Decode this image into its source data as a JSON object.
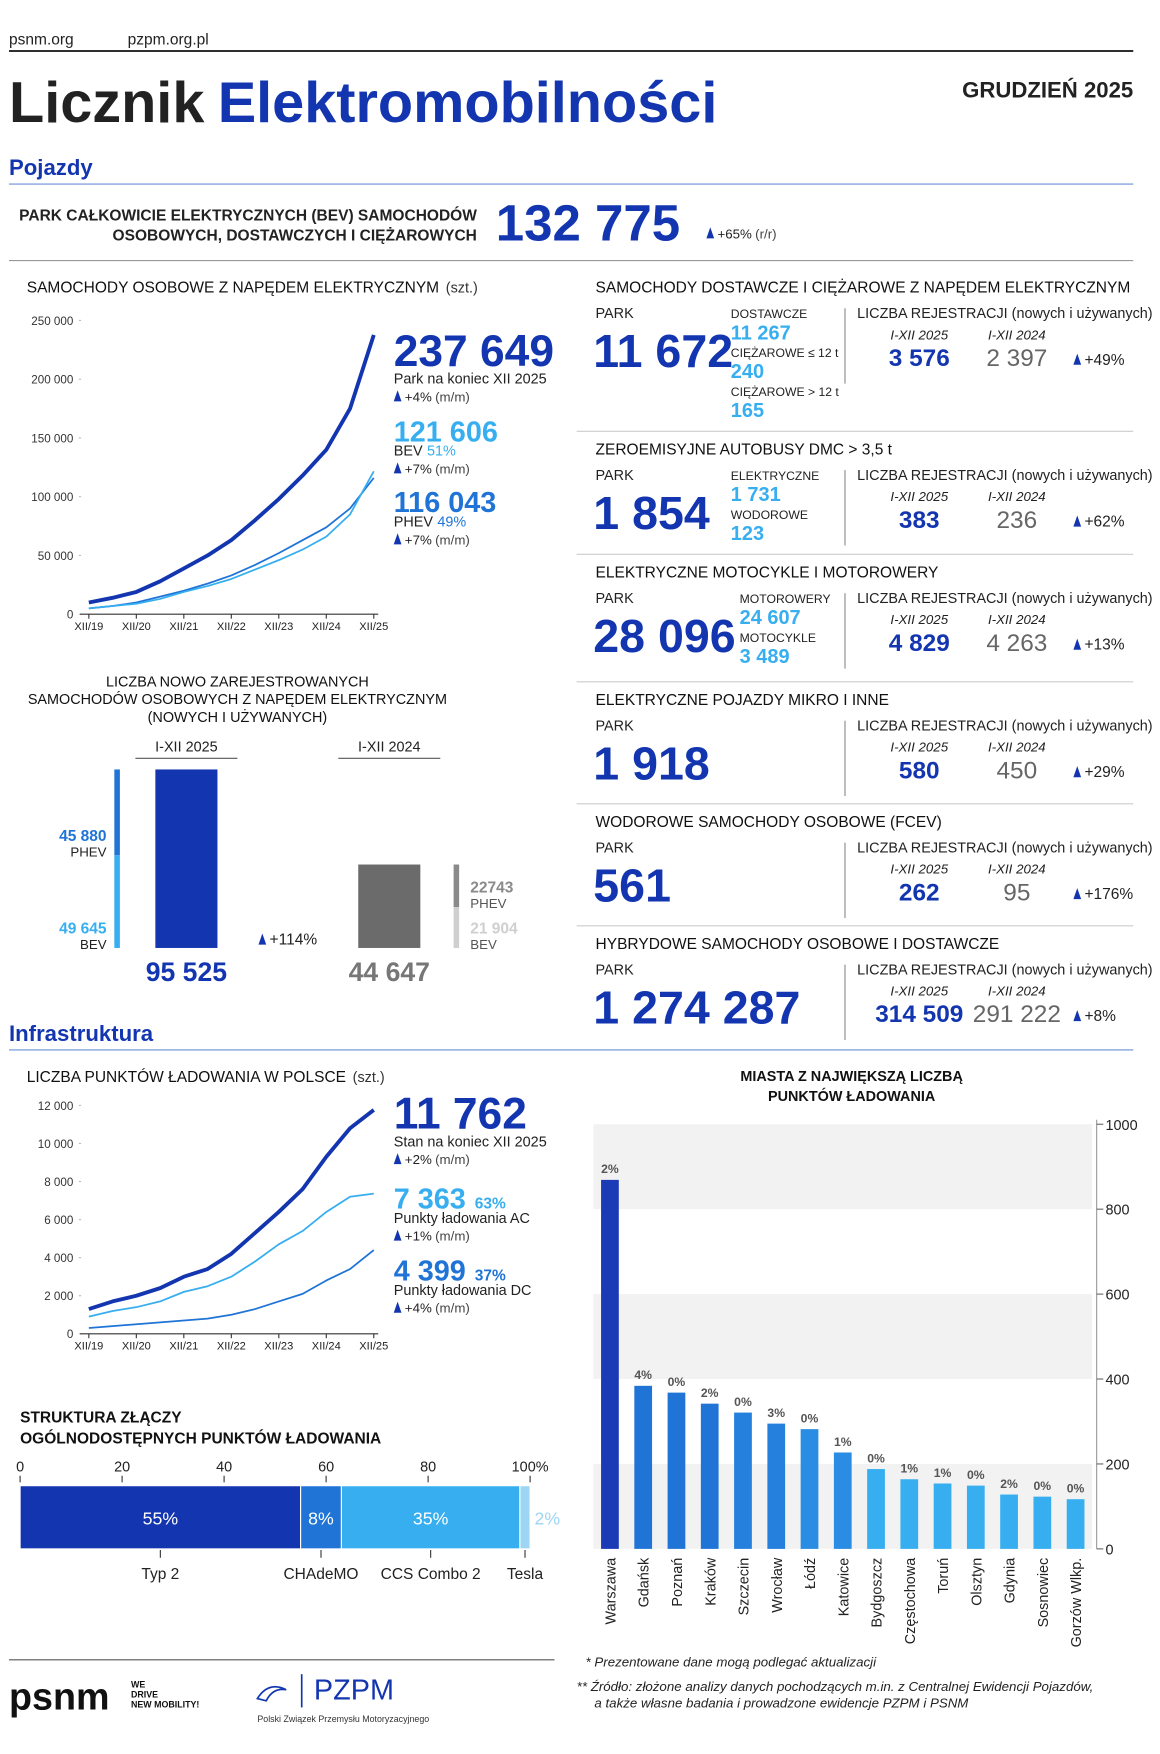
{
  "header": {
    "links": [
      "psnm.org",
      "pzpm.org.pl"
    ],
    "title_1": "Licznik",
    "title_2": "Elektromobilności",
    "date": "GRUDZIEŃ 2025"
  },
  "sections": [
    "Pojazdy",
    "Infrastruktura"
  ],
  "bev_park": {
    "label": [
      "PARK CAŁKOWICIE ELEKTRYCZNYCH (BEV) SAMOCHODÓW",
      "OSOBOWYCH, DOSTAWCZYCH I CIĘŻAROWYCH"
    ],
    "value": "132 775",
    "change": "+65%",
    "change_unit": "(r/r)"
  },
  "panels": [
    {
      "title": "SAMOCHODY DOSTAWCZE I CIĘŻAROWE Z NAPĘDEM ELEKTRYCZNYM",
      "park_label": "PARK",
      "park": "11 672",
      "breakdown": [
        {
          "label": "DOSTAWCZE",
          "value": "11 267"
        },
        {
          "label": "CIĘŻAROWE ≤ 12 t",
          "value": "240"
        },
        {
          "label": "CIĘŻAROWE > 12 t",
          "value": "165"
        }
      ],
      "reg_label": "LICZBA REJESTRACJI (nowych i używanych)",
      "periods": [
        "I-XII 2025",
        "I-XII 2024"
      ],
      "reg": [
        "3 576",
        "2 397"
      ],
      "change": "+49%"
    },
    {
      "title": "ZEROEMISYJNE AUTOBUSY DMC > 3,5 t",
      "park_label": "PARK",
      "park": "1 854",
      "breakdown": [
        {
          "label": "ELEKTRYCZNE",
          "value": "1 731"
        },
        {
          "label": "WODOROWE",
          "value": "123"
        }
      ],
      "reg_label": "LICZBA REJESTRACJI (nowych i używanych)",
      "periods": [
        "I-XII 2025",
        "I-XII 2024"
      ],
      "reg": [
        "383",
        "236"
      ],
      "change": "+62%"
    },
    {
      "title": "ELEKTRYCZNE MOTOCYKLE I MOTOROWERY",
      "park_label": "PARK",
      "park": "28 096",
      "breakdown": [
        {
          "label": "MOTOROWERY",
          "value": "24 607"
        },
        {
          "label": "MOTOCYKLE",
          "value": "3 489"
        }
      ],
      "reg_label": "LICZBA REJESTRACJI (nowych i używanych)",
      "periods": [
        "I-XII 2025",
        "I-XII 2024"
      ],
      "reg": [
        "4 829",
        "4 263"
      ],
      "change": "+13%"
    },
    {
      "title": "ELEKTRYCZNE POJAZDY MIKRO I INNE",
      "park_label": "PARK",
      "park": "1 918",
      "reg_label": "LICZBA REJESTRACJI (nowych i używanych)",
      "periods": [
        "I-XII 2025",
        "I-XII 2024"
      ],
      "reg": [
        "580",
        "450"
      ],
      "change": "+29%"
    },
    {
      "title": "WODOROWE SAMOCHODY OSOBOWE (FCEV)",
      "park_label": "PARK",
      "park": "561",
      "reg_label": "LICZBA REJESTRACJI (nowych i używanych)",
      "periods": [
        "I-XII 2025",
        "I-XII 2024"
      ],
      "reg": [
        "262",
        "95"
      ],
      "change": "+176%"
    },
    {
      "title": "HYBRYDOWE SAMOCHODY OSOBOWE I DOSTAWCZE",
      "park_label": "PARK",
      "park": "1 274 287",
      "reg_label": "LICZBA REJESTRACJI (nowych i używanych)",
      "periods": [
        "I-XII 2025",
        "I-XII 2024"
      ],
      "reg": [
        "314 509",
        "291 222"
      ],
      "change": "+8%"
    }
  ],
  "chart_data": [
    {
      "type": "line",
      "title": "SAMOCHODY OSOBOWE Z NAPĘDEM ELEKTRYCZNYM",
      "unit": "(szt.)",
      "categories": [
        "XII/19",
        null,
        "XII/20",
        null,
        "XII/21",
        null,
        "XII/22",
        null,
        "XII/23",
        null,
        "XII/24",
        null,
        "XII/25"
      ],
      "ylim": [
        0,
        250000
      ],
      "yticks": [
        0,
        {
          "value": 50000,
          "label": "50 000"
        },
        {
          "value": 100000,
          "label": "100 000"
        },
        {
          "value": 150000,
          "label": "150 000"
        },
        {
          "value": 200000,
          "label": "200 000"
        },
        {
          "value": 250000,
          "label": "250 000"
        }
      ],
      "series": [
        {
          "name": "Park na koniec XII 2025",
          "color": "#1336b0",
          "values": [
            10000,
            14000,
            19000,
            28000,
            39000,
            50000,
            63000,
            80000,
            98000,
            118000,
            140000,
            175000,
            237649
          ],
          "callout": "237 649",
          "change": "+4%",
          "change_unit": "(m/m)"
        },
        {
          "name": "BEV",
          "color": "#36aef0",
          "values": [
            5000,
            7000,
            9000,
            13000,
            19000,
            24000,
            30000,
            38000,
            46000,
            55000,
            66000,
            85000,
            121606
          ],
          "callout": "121 606",
          "share": "51%",
          "change": "+7%",
          "change_unit": "(m/m)"
        },
        {
          "name": "PHEV",
          "color": "#1f74d6",
          "values": [
            5000,
            7000,
            10000,
            15000,
            20000,
            26000,
            33000,
            42000,
            52000,
            63000,
            74000,
            90000,
            116043
          ],
          "callout": "116 043",
          "share": "49%",
          "change": "+7%",
          "change_unit": "(m/m)"
        }
      ]
    },
    {
      "type": "stacked-bar",
      "title": [
        "LICZBA NOWO ZAREJESTROWANYCH",
        "SAMOCHODÓW OSOBOWYCH Z NAPĘDEM ELEKTRYCZNYM",
        "(NOWYCH I UŻYWANYCH)"
      ],
      "categories": [
        "I-XII 2025",
        "I-XII 2024"
      ],
      "series": [
        {
          "name": "BEV",
          "values": [
            49645,
            21904
          ],
          "value_labels": [
            "49 645",
            "21 904"
          ],
          "colors": [
            "#36aef0",
            "#cfcfcf"
          ]
        },
        {
          "name": "PHEV",
          "values": [
            45880,
            22743
          ],
          "value_labels": [
            "45 880",
            "22743"
          ],
          "colors": [
            "#1f74d6",
            "#8a8a8a"
          ]
        }
      ],
      "totals": [
        95525,
        44647
      ],
      "total_labels": [
        "95 525",
        "44 647"
      ],
      "bar_colors": [
        "#1336b0",
        "#6b6b6b"
      ],
      "change": "+114%"
    },
    {
      "type": "line",
      "title": "LICZBA PUNKTÓW ŁADOWANIA W POLSCE",
      "unit": "(szt.)",
      "categories": [
        "XII/19",
        null,
        "XII/20",
        null,
        "XII/21",
        null,
        "XII/22",
        null,
        "XII/23",
        null,
        "XII/24",
        null,
        "XII/25"
      ],
      "ylim": [
        0,
        12000
      ],
      "yticks": [
        0,
        {
          "value": 2000,
          "label": "2 000"
        },
        {
          "value": 4000,
          "label": "4 000"
        },
        {
          "value": 6000,
          "label": "6 000"
        },
        {
          "value": 8000,
          "label": "8 000"
        },
        {
          "value": 10000,
          "label": "10 000"
        },
        {
          "value": 12000,
          "label": "12 000"
        }
      ],
      "series": [
        {
          "name": "Stan na koniec XII 2025",
          "color": "#1336b0",
          "values": [
            1300,
            1700,
            2000,
            2400,
            3000,
            3400,
            4200,
            5300,
            6400,
            7600,
            9300,
            10800,
            11762
          ],
          "callout": "11 762",
          "change": "+2%",
          "change_unit": "(m/m)"
        },
        {
          "name": "Punkty ładowania AC",
          "color": "#36aef0",
          "values": [
            900,
            1200,
            1400,
            1700,
            2200,
            2500,
            3000,
            3800,
            4700,
            5400,
            6400,
            7200,
            7363
          ],
          "callout": "7 363",
          "share": "63%",
          "change": "+1%",
          "change_unit": "(m/m)"
        },
        {
          "name": "Punkty ładowania DC",
          "color": "#1f74d6",
          "values": [
            300,
            400,
            500,
            600,
            700,
            800,
            1000,
            1300,
            1700,
            2100,
            2800,
            3400,
            4399
          ],
          "callout": "4 399",
          "share": "37%",
          "change": "+4%",
          "change_unit": "(m/m)"
        }
      ]
    },
    {
      "type": "stacked-hbar",
      "title": [
        "STRUKTURA ZŁĄCZY",
        "OGÓLNODOSTĘPNYCH PUNKTÓW ŁADOWANIA"
      ],
      "categories": [
        "Typ 2",
        "CHAdeMO",
        "CCS Combo 2",
        "Tesla"
      ],
      "values": [
        55,
        8,
        35,
        2
      ],
      "value_labels": [
        "55%",
        "8%",
        "35%",
        "2%"
      ],
      "colors": [
        "#1336b0",
        "#1f74d6",
        "#36aef0",
        "#9dd5f5"
      ],
      "xlim": [
        0,
        100
      ],
      "xticks": [
        0,
        20,
        40,
        60,
        80,
        {
          "value": 100,
          "label": "100%"
        }
      ]
    },
    {
      "type": "bar",
      "title": [
        "MIASTA Z NAJWIĘKSZĄ LICZBĄ",
        "PUNKTÓW ŁADOWANIA"
      ],
      "categories": [
        "Warszawa",
        "Gdańsk",
        "Poznań",
        "Kraków",
        "Szczecin",
        "Wrocław",
        "Łódź",
        "Katowice",
        "Bydgoszcz",
        "Częstochowa",
        "Toruń",
        "Olsztyn",
        "Gdynia",
        "Sosnowiec",
        "Gorzów Wlkp."
      ],
      "values": [
        869,
        384,
        368,
        342,
        321,
        295,
        282,
        227,
        188,
        164,
        154,
        149,
        128,
        123,
        117
      ],
      "change_labels": [
        "2%",
        "4%",
        "0%",
        "2%",
        "0%",
        "3%",
        "0%",
        "1%",
        "0%",
        "1%",
        "1%",
        "0%",
        "2%",
        "0%",
        "0%"
      ],
      "colors": [
        "#1a3bb5",
        "#1f74d6",
        "#1f74d6",
        "#1f74d6",
        "#2480dc",
        "#2480dc",
        "#2a8ce2",
        "#2a8ce2",
        "#36aef0",
        "#36aef0",
        "#36aef0",
        "#36aef0",
        "#36aef0",
        "#36aef0",
        "#36aef0"
      ],
      "ylim": [
        0,
        1000
      ],
      "yticks": [
        0,
        200,
        400,
        600,
        800,
        1000
      ]
    }
  ],
  "footer": {
    "logo_psnm": "psnm",
    "slogan": [
      "WE",
      "DRIVE",
      "NEW MOBILITY!"
    ],
    "logo_pzpm": "PZPM",
    "pzpm_name": "Polski Związek Przemysłu Motoryzacyjnego",
    "notes": [
      "* Prezentowane dane mogą podlegać aktualizacji",
      "** Źródło: złożone analizy danych pochodzących m.in. z Centralnej Ewidencji Pojazdów,",
      "a także własne badania i prowadzone ewidencje PZPM i PSNM"
    ]
  }
}
